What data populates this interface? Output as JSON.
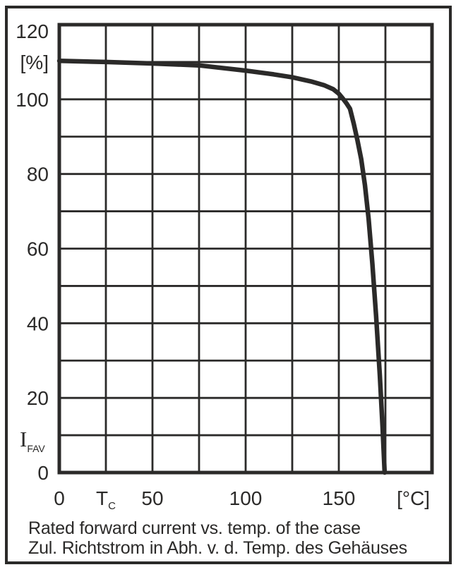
{
  "caption": {
    "line_en": "Rated forward current vs. temp. of the case",
    "line_de": "Zul. Richtstrom in Abh. v. d. Temp. des Gehäuses"
  },
  "chart_data": {
    "type": "line",
    "title": "",
    "grid": true,
    "colors": {
      "ink": "#2b2a29",
      "background": "#ffffff"
    },
    "x_axis": {
      "quantity_symbol": "T",
      "quantity_symbol_sub": "C",
      "symbol_at_value": 25,
      "unit": "[°C]",
      "unit_at_value": 190,
      "range": [
        0,
        200
      ],
      "gridline_step": 25,
      "ticks": [
        {
          "value": 0,
          "label": "0"
        },
        {
          "value": 50,
          "label": "50"
        },
        {
          "value": 100,
          "label": "100"
        },
        {
          "value": 150,
          "label": "150"
        }
      ]
    },
    "y_axis": {
      "quantity_symbol": "I",
      "quantity_symbol_sub": "FAV",
      "unit": "[%]",
      "unit_at_value": 110,
      "range": [
        0,
        120
      ],
      "gridline_step": 10,
      "ticks": [
        {
          "value": 120,
          "label": "120"
        },
        {
          "value": 100,
          "label": "100"
        },
        {
          "value": 80,
          "label": "80"
        },
        {
          "value": 60,
          "label": "60"
        },
        {
          "value": 40,
          "label": "40"
        },
        {
          "value": 20,
          "label": "20"
        },
        {
          "value": 0,
          "label": "0"
        }
      ]
    },
    "series": [
      {
        "name": "rated-forward-current-derating",
        "x": [
          0,
          25,
          50,
          75,
          100,
          115,
          125,
          135,
          142,
          147,
          150,
          152,
          154,
          156,
          158,
          160,
          162,
          164,
          166,
          168,
          170,
          172,
          173.5,
          174.6
        ],
        "y": [
          110.3,
          110.0,
          109.6,
          109.1,
          107.7,
          106.7,
          105.9,
          104.8,
          103.8,
          102.7,
          101.5,
          100.3,
          99.0,
          97.5,
          93.5,
          89.0,
          84.0,
          77.0,
          68.0,
          56.0,
          42.0,
          26.0,
          12.0,
          0.0
        ]
      }
    ]
  }
}
